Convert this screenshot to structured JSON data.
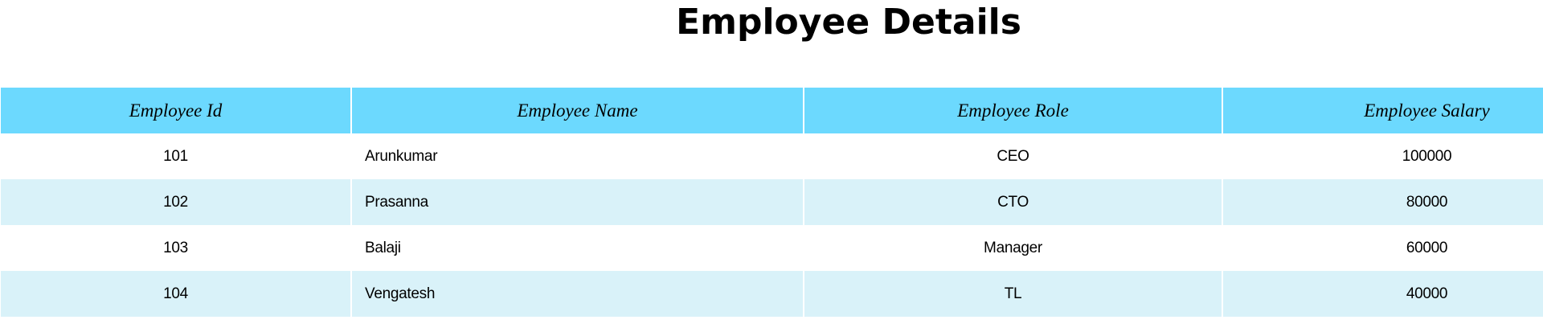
{
  "page": {
    "title": "Employee Details"
  },
  "colors": {
    "header_bg": "#6cd9fe",
    "stripe_bg": "#d9f2f9",
    "row_bg": "#ffffff"
  },
  "table": {
    "headers": [
      "Employee Id",
      "Employee Name",
      "Employee Role",
      "Employee Salary"
    ],
    "rows": [
      {
        "id": "101",
        "name": "Arunkumar",
        "role": "CEO",
        "salary": "100000"
      },
      {
        "id": "102",
        "name": "Prasanna",
        "role": "CTO",
        "salary": "80000"
      },
      {
        "id": "103",
        "name": "Balaji",
        "role": "Manager",
        "salary": "60000"
      },
      {
        "id": "104",
        "name": "Vengatesh",
        "role": "TL",
        "salary": "40000"
      }
    ]
  }
}
